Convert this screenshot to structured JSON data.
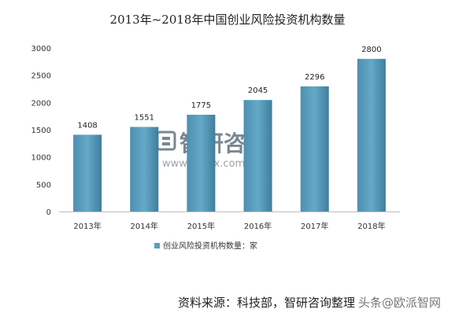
{
  "chart_data": {
    "type": "bar",
    "title": "2013年~2018年中国创业风险投资机构数量",
    "categories": [
      "2013年",
      "2014年",
      "2015年",
      "2016年",
      "2017年",
      "2018年"
    ],
    "series": [
      {
        "name": "创业风险投资机构数量：家",
        "values": [
          1408,
          1551,
          1775,
          2045,
          2296,
          2800
        ]
      }
    ],
    "ylim": [
      0,
      3000
    ],
    "yticks": [
      0,
      500,
      1000,
      1500,
      2000,
      2500,
      3000
    ],
    "grid": false,
    "legend": "bottom",
    "bar_color": "#5b9ebf",
    "bar_color_dark": "#3f7e9c"
  },
  "watermark": {
    "brand": "智研咨询",
    "url": "www.chyxx.com"
  },
  "footer": {
    "source": "资料来源：科技部，智研咨询整理",
    "overlay": "头条@欧派智网"
  }
}
